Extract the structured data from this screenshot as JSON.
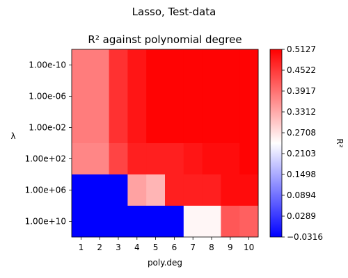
{
  "chart_data": {
    "type": "heatmap",
    "suptitle": "Lasso, Test-data",
    "title": "R² against polynomial degree",
    "xlabel": "poly.deg",
    "ylabel": "λ",
    "colorbar_label": "R²",
    "x": [
      "1",
      "2",
      "3",
      "4",
      "5",
      "6",
      "7",
      "8",
      "9",
      "10"
    ],
    "y": [
      "1.00e-10",
      "1.00e-06",
      "1.00e-02",
      "1.00e+02",
      "1.00e+06",
      "1.00e+10"
    ],
    "values": [
      [
        0.38,
        0.38,
        0.46,
        0.49,
        0.51,
        0.51,
        0.51,
        0.51,
        0.51,
        0.51
      ],
      [
        0.38,
        0.38,
        0.46,
        0.49,
        0.51,
        0.51,
        0.51,
        0.51,
        0.51,
        0.51
      ],
      [
        0.38,
        0.38,
        0.46,
        0.49,
        0.51,
        0.51,
        0.51,
        0.51,
        0.51,
        0.51
      ],
      [
        0.37,
        0.37,
        0.44,
        0.48,
        0.48,
        0.48,
        0.49,
        0.5,
        0.5,
        0.51
      ],
      [
        -0.0316,
        -0.0316,
        -0.0316,
        0.34,
        0.32,
        0.48,
        0.48,
        0.48,
        0.5,
        0.5
      ],
      [
        -0.0316,
        -0.0316,
        -0.0316,
        -0.0316,
        -0.0316,
        -0.0316,
        0.25,
        0.25,
        0.42,
        0.41
      ]
    ],
    "vmin": -0.0316,
    "vmax": 0.5127,
    "colormap": "bwr",
    "colorbar_ticks": [
      "0.5127",
      "0.4522",
      "0.3917",
      "0.3312",
      "0.2708",
      "0.2103",
      "0.1498",
      "0.0894",
      "0.0289",
      "−0.0316"
    ]
  }
}
